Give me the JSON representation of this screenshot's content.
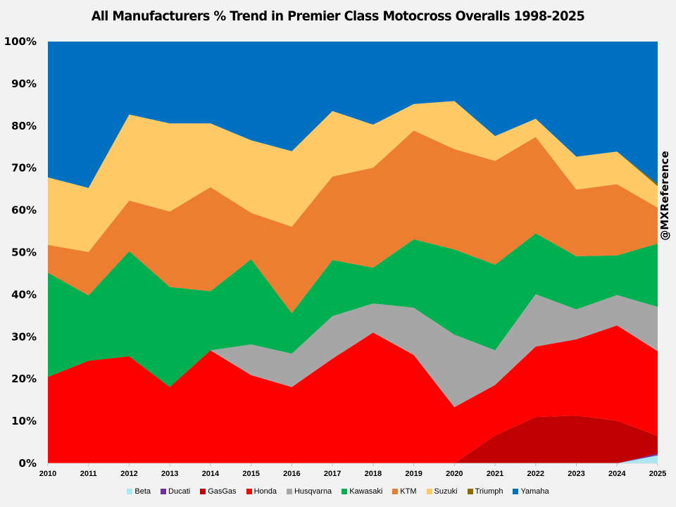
{
  "chart_data": {
    "type": "area",
    "stacked": "percent",
    "title": "All Manufacturers % Trend in Premier Class Motocross Overalls 1998-2025",
    "xlabel": "",
    "ylabel": "",
    "ylim": [
      0,
      100
    ],
    "yticks": [
      "0%",
      "10%",
      "20%",
      "30%",
      "40%",
      "50%",
      "60%",
      "70%",
      "80%",
      "90%",
      "100%"
    ],
    "categories": [
      "2010",
      "2011",
      "2012",
      "2013",
      "2014",
      "2015",
      "2016",
      "2017",
      "2018",
      "2019",
      "2020",
      "2021",
      "2022",
      "2023",
      "2024",
      "2025"
    ],
    "legend_position": "bottom",
    "grid": false,
    "watermark": "@MXReference",
    "series": [
      {
        "name": "Beta",
        "color": "#a9e8f3",
        "values": [
          0,
          0,
          0,
          0,
          0,
          0,
          0,
          0,
          0,
          0,
          0,
          0,
          0,
          0,
          0,
          1.9
        ]
      },
      {
        "name": "Ducati",
        "color": "#7030a0",
        "values": [
          0,
          0,
          0,
          0,
          0,
          0,
          0,
          0,
          0,
          0,
          0,
          0,
          0,
          0,
          0,
          0.4
        ]
      },
      {
        "name": "GasGas",
        "color": "#c00000",
        "values": [
          0,
          0,
          0,
          0,
          0,
          0,
          0,
          0,
          0,
          0,
          0,
          6.6,
          11.0,
          11.3,
          10.1,
          4.2
        ]
      },
      {
        "name": "Honda",
        "color": "#ff0000",
        "values": [
          20.5,
          24.3,
          25.4,
          18.1,
          26.8,
          20.9,
          18.1,
          24.8,
          31.0,
          25.7,
          13.3,
          12.0,
          16.7,
          18.1,
          22.6,
          20.1
        ]
      },
      {
        "name": "Husqvarna",
        "color": "#a6a6a6",
        "values": [
          0,
          0,
          0,
          0,
          0,
          7.3,
          7.9,
          10.1,
          6.9,
          11.2,
          17.2,
          8.2,
          12.4,
          7.1,
          7.2,
          10.5
        ]
      },
      {
        "name": "Kawasaki",
        "color": "#00b050",
        "values": [
          24.7,
          15.5,
          24.9,
          23.7,
          14.0,
          20.2,
          9.6,
          13.3,
          8.5,
          16.2,
          20.2,
          20.3,
          14.4,
          12.6,
          9.4,
          15.0
        ]
      },
      {
        "name": "KTM",
        "color": "#ed7d31",
        "values": [
          6.6,
          10.3,
          12.0,
          17.9,
          24.7,
          11.0,
          20.5,
          19.8,
          23.7,
          25.8,
          23.8,
          24.6,
          22.9,
          15.8,
          16.9,
          8.5
        ]
      },
      {
        "name": "Suzuki",
        "color": "#ffc966",
        "values": [
          16.0,
          15.2,
          20.4,
          20.9,
          15.1,
          17.2,
          17.9,
          15.5,
          10.2,
          6.3,
          11.4,
          5.9,
          4.3,
          7.8,
          7.7,
          5.1
        ]
      },
      {
        "name": "Triumph",
        "color": "#8b6a00",
        "values": [
          0,
          0,
          0,
          0,
          0,
          0,
          0,
          0,
          0,
          0,
          0,
          0,
          0,
          0,
          0,
          0.5
        ]
      },
      {
        "name": "Yamaha",
        "color": "#0070c0",
        "values": [
          32.2,
          34.7,
          17.3,
          19.4,
          19.4,
          23.4,
          26.0,
          16.5,
          19.7,
          14.8,
          14.1,
          22.4,
          18.3,
          27.3,
          26.1,
          33.8
        ]
      }
    ]
  }
}
